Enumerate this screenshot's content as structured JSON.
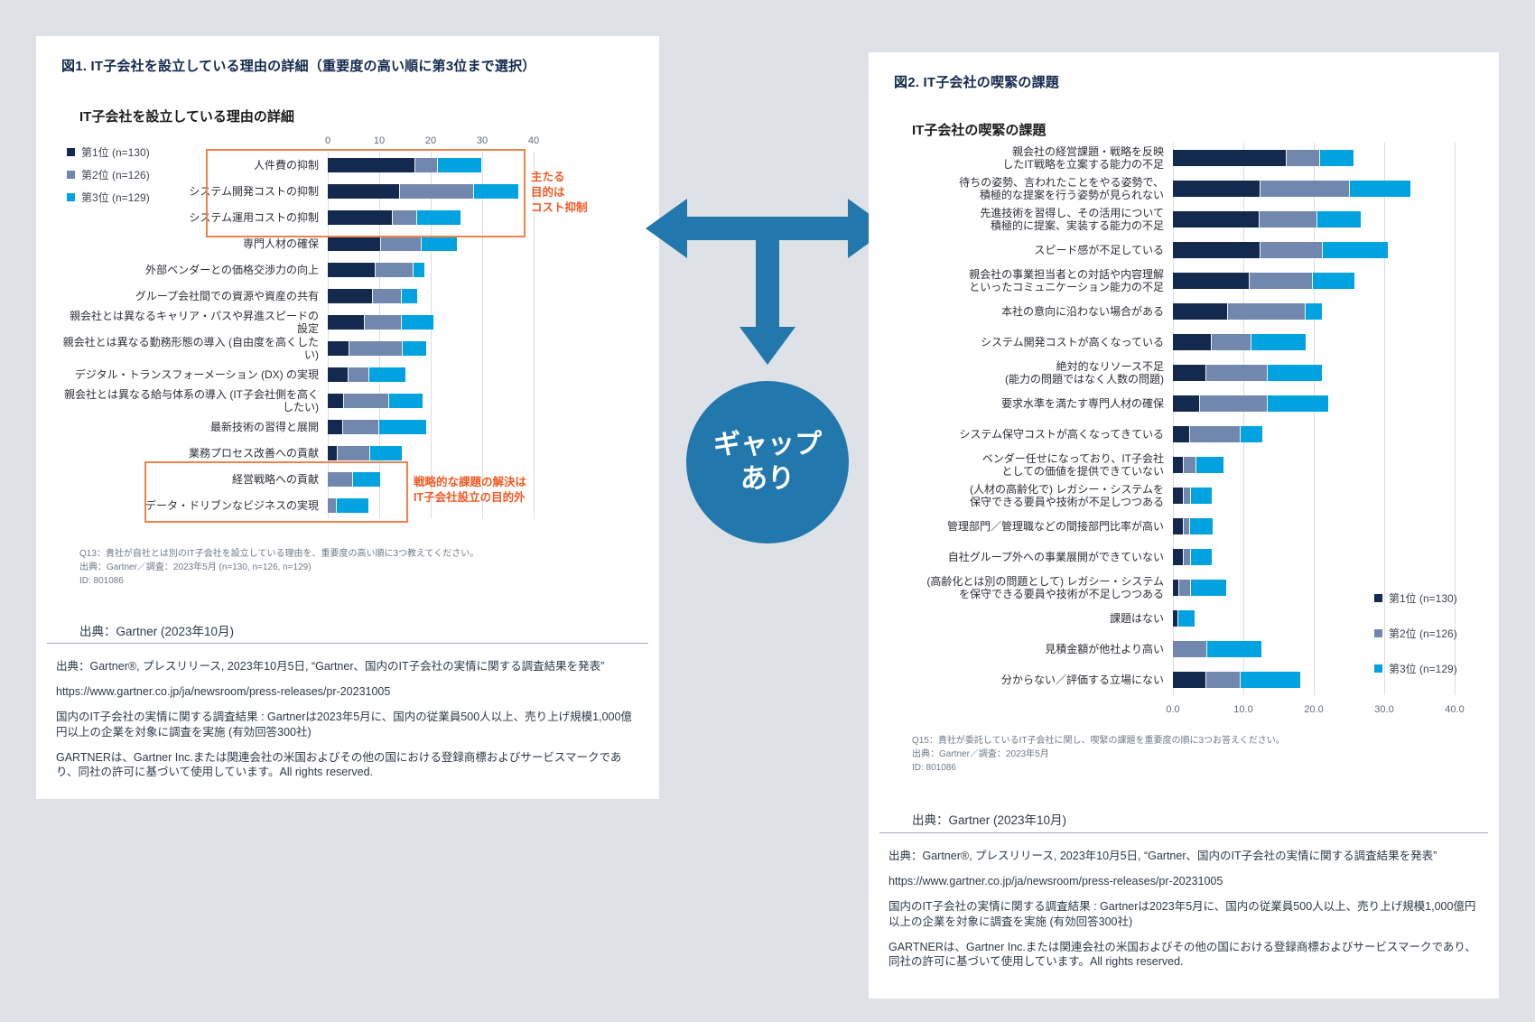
{
  "colors": {
    "rank1": "#13294e",
    "rank2": "#7187ae",
    "rank3": "#00a3e0",
    "orange_text": "#f15a24",
    "orange_box": "#f0824f",
    "arrow_blue": "#2277ad",
    "heading_navy": "#14294e"
  },
  "gap_label_lines": [
    "ギャップ",
    "あり"
  ],
  "figure1": {
    "heading": "図1. IT子会社を設立している理由の詳細（重要度の高い順に第3位まで選択）",
    "chart_title": "IT子会社を設立している理由の詳細",
    "annotation_cost_lines": [
      "主たる",
      "目的は",
      "コスト抑制"
    ],
    "annotation_strategy_lines": [
      "戦略的な課題の解決は",
      "IT子会社設立の目的外"
    ],
    "note_lines": [
      "Q13：貴社が自社とは別のIT子会社を設立している理由を、重要度の高い順に3つ教えてください。",
      "出典：Gartner／調査：2023年5月 (n=130, n=126, n=129)",
      "ID: 801086"
    ],
    "source": "出典：Gartner (2023年10月)"
  },
  "figure2": {
    "heading": "図2. IT子会社の喫緊の課題",
    "chart_title": "IT子会社の喫緊の課題",
    "note_lines": [
      "Q15：貴社が委託しているIT子会社に関し、喫緊の課題を重要度の順に3つお答えください。",
      "出典：Gartner／調査：2023年5月",
      "ID: 801086"
    ],
    "source": "出典：Gartner (2023年10月)"
  },
  "footer": {
    "lines": [
      "出典：Gartner®, プレスリリース, 2023年10月5日, “Gartner、国内のIT子会社の実情に関する調査結果を発表”",
      "https://www.gartner.co.jp/ja/newsroom/press-releases/pr-20231005",
      "国内のIT子会社の実情に関する調査結果 : Gartnerは2023年5月に、国内の従業員500人以上、売り上げ規模1,000億円以上の企業を対象に調査を実施 (有効回答300社)",
      "GARTNERは、Gartner Inc.または関連会社の米国およびその他の国における登録商標およびサービスマークであり、同社の許可に基づいて使用しています。All rights reserved."
    ]
  },
  "chart_data": [
    {
      "type": "bar",
      "orientation": "horizontal_stacked",
      "title": "IT子会社を設立している理由の詳細",
      "axis": {
        "min": 0,
        "max": 40,
        "ticks": [
          "0",
          "10",
          "20",
          "30",
          "40"
        ],
        "position": "top",
        "grid": true
      },
      "legend": [
        {
          "label": "第1位 (n=130)",
          "color": "#13294e"
        },
        {
          "label": "第2位 (n=126)",
          "color": "#7187ae"
        },
        {
          "label": "第3位 (n=129)",
          "color": "#00a3e0"
        }
      ],
      "categories": [
        [
          "人件費の抑制"
        ],
        [
          "システム開発コストの抑制"
        ],
        [
          "システム運用コストの抑制"
        ],
        [
          "専門人材の確保"
        ],
        [
          "外部ベンダーとの価格交渉力の向上"
        ],
        [
          "グループ会社間での資源や資産の共有"
        ],
        [
          "親会社とは異なるキャリア・パスや昇進スピードの設定"
        ],
        [
          "親会社とは異なる勤務形態の導入 (自由度を高くしたい)"
        ],
        [
          "デジタル・トランスフォーメーション (DX) の実現"
        ],
        [
          "親会社とは異なる給与体系の導入 (IT子会社側を高くしたい)"
        ],
        [
          "最新技術の習得と展開"
        ],
        [
          "業務プロセス改善への貢献"
        ],
        [
          "経営戦略への貢献"
        ],
        [
          "データ・ドリブンなビジネスの実現"
        ]
      ],
      "series": [
        {
          "name": "第1位 (n=130)",
          "values": [
            16.9,
            13.9,
            12.4,
            10.2,
            9.1,
            8.6,
            7.0,
            4.1,
            3.9,
            3.0,
            2.8,
            1.8,
            0,
            0
          ]
        },
        {
          "name": "第2位 (n=126)",
          "values": [
            4.1,
            14.1,
            4.7,
            7.7,
            7.2,
            5.5,
            7.1,
            10.2,
            3.9,
            8.6,
            6.9,
            6.1,
            4.7,
            1.5
          ]
        },
        {
          "name": "第3位 (n=129)",
          "values": [
            8.5,
            8.7,
            8.4,
            6.9,
            2.1,
            2.9,
            6.1,
            4.4,
            7.0,
            6.4,
            9.0,
            6.2,
            5.3,
            6.2
          ]
        }
      ]
    },
    {
      "type": "bar",
      "orientation": "horizontal_stacked",
      "title": "IT子会社の喫緊の課題",
      "axis": {
        "min": 0,
        "max": 40,
        "ticks": [
          "0.0",
          "10.0",
          "20.0",
          "30.0",
          "40.0"
        ],
        "position": "bottom",
        "grid": true
      },
      "legend": [
        {
          "label": "第1位 (n=130)",
          "color": "#13294e"
        },
        {
          "label": "第2位 (n=126)",
          "color": "#7187ae"
        },
        {
          "label": "第3位 (n=129)",
          "color": "#00a3e0"
        }
      ],
      "categories": [
        [
          "親会社の経営課題・戦略を反映",
          "したIT戦略を立案する能力の不足"
        ],
        [
          "待ちの姿勢、言われたことをやる姿勢で、",
          "積極的な提案を行う姿勢が見られない"
        ],
        [
          "先進技術を習得し、その活用について",
          "積極的に提案、実装する能力の不足"
        ],
        [
          "スピード感が不足している"
        ],
        [
          "親会社の事業担当者との対話や内容理解",
          "といったコミュニケーション能力の不足"
        ],
        [
          "本社の意向に沿わない場合がある"
        ],
        [
          "システム開発コストが高くなっている"
        ],
        [
          "絶対的なリソース不足",
          "(能力の問題ではなく人数の問題)"
        ],
        [
          "要求水準を満たす専門人材の確保"
        ],
        [
          "システム保守コストが高くなってきている"
        ],
        [
          "ベンダー任せになっており、IT子会社",
          "としての価値を提供できていない"
        ],
        [
          "(人材の高齢化で) レガシー・システムを",
          "保守できる要員や技術が不足しつつある"
        ],
        [
          "管理部門／管理職などの間接部門比率が高い"
        ],
        [
          "自社グループ外への事業展開ができていない"
        ],
        [
          "(高齢化とは別の問題として) レガシー・システム",
          "を保守できる要員や技術が不足しつつある"
        ],
        [
          "課題はない"
        ],
        [
          "見積金額が他社より高い"
        ],
        [
          "分からない／評価する立場にない"
        ]
      ],
      "series": [
        {
          "name": "第1位 (n=130)",
          "values": [
            16.0,
            12.3,
            12.2,
            12.3,
            10.8,
            7.7,
            5.4,
            4.6,
            3.7,
            2.3,
            1.4,
            1.4,
            1.4,
            1.4,
            0.8,
            0.6,
            0,
            4.6
          ]
        },
        {
          "name": "第2位 (n=126)",
          "values": [
            4.7,
            12.6,
            8.0,
            8.7,
            8.8,
            10.9,
            5.5,
            8.6,
            9.5,
            7.0,
            1.7,
            0.9,
            0.8,
            0.9,
            1.5,
            0,
            4.8,
            4.7
          ]
        },
        {
          "name": "第3位 (n=129)",
          "values": [
            4.7,
            8.5,
            6.2,
            9.2,
            5.9,
            2.3,
            7.7,
            7.7,
            8.6,
            3.1,
            3.8,
            3.0,
            3.2,
            3.0,
            5.0,
            2.4,
            7.6,
            8.5
          ]
        }
      ]
    }
  ]
}
